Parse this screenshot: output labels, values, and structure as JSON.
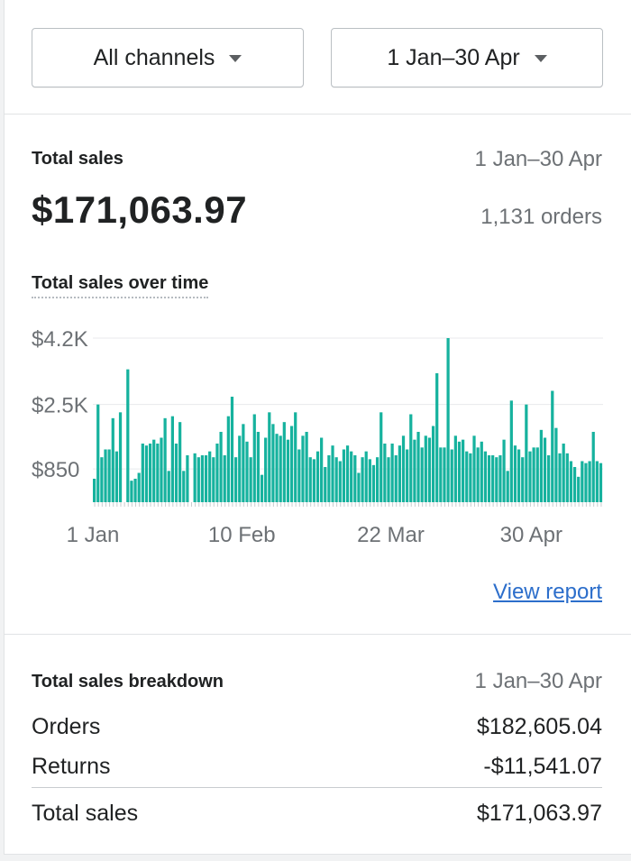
{
  "filters": {
    "channel_label": "All channels",
    "date_label": "1 Jan–30 Apr"
  },
  "total_sales": {
    "title": "Total sales",
    "date_range": "1 Jan–30 Apr",
    "value": "$171,063.97",
    "orders": "1,131 orders",
    "chart_title": "Total sales over time",
    "view_report": "View report"
  },
  "chart_data": {
    "type": "bar",
    "title": "Total sales over time",
    "xlabel": "",
    "ylabel": "",
    "ylim": [
      0,
      4200
    ],
    "grid": true,
    "legend": "none",
    "color": "#16b29e",
    "y_tick_labels": [
      "$4.2K",
      "$2.5K",
      "$850"
    ],
    "y_tick_values": [
      4200,
      2500,
      850
    ],
    "x_tick_labels": [
      "1 Jan",
      "10 Feb",
      "22 Mar",
      "30 Apr"
    ],
    "x_tick_days": [
      0,
      40,
      80,
      119
    ],
    "values": [
      600,
      2500,
      1150,
      1350,
      1350,
      2150,
      1300,
      2300,
      0,
      3400,
      550,
      600,
      750,
      1500,
      1450,
      1500,
      1600,
      1500,
      1650,
      2150,
      800,
      2200,
      1500,
      2050,
      800,
      1200,
      0,
      1250,
      1150,
      1200,
      1200,
      1300,
      1150,
      1500,
      1800,
      1200,
      2200,
      2700,
      1150,
      1700,
      2000,
      1550,
      1150,
      2250,
      1800,
      700,
      1650,
      2300,
      2000,
      1750,
      1700,
      2050,
      1600,
      1950,
      2300,
      1350,
      1700,
      1800,
      1150,
      1100,
      1300,
      1650,
      900,
      1200,
      1450,
      1150,
      1050,
      1350,
      1450,
      1300,
      1200,
      750,
      1150,
      1300,
      1100,
      950,
      1150,
      2300,
      1500,
      1150,
      1500,
      1200,
      1450,
      1700,
      1350,
      2250,
      1600,
      1800,
      1400,
      1700,
      1650,
      1950,
      3300,
      1400,
      1400,
      4200,
      1350,
      1700,
      1550,
      1600,
      1300,
      1250,
      1700,
      1400,
      1550,
      1300,
      1200,
      1200,
      1150,
      1200,
      1600,
      800,
      2600,
      1450,
      1350,
      1150,
      2500,
      1300,
      1400,
      1400,
      1850,
      1650,
      1200,
      2850,
      1900,
      1250,
      1500,
      1250,
      1050,
      900,
      650,
      1050,
      1000,
      1050,
      1800,
      1050,
      1000
    ]
  },
  "breakdown": {
    "title": "Total sales breakdown",
    "date_range": "1 Jan–30 Apr",
    "rows": [
      {
        "label": "Orders",
        "value": "$182,605.04"
      },
      {
        "label": "Returns",
        "value": "-$11,541.07"
      }
    ],
    "total": {
      "label": "Total sales",
      "value": "$171,063.97"
    }
  }
}
